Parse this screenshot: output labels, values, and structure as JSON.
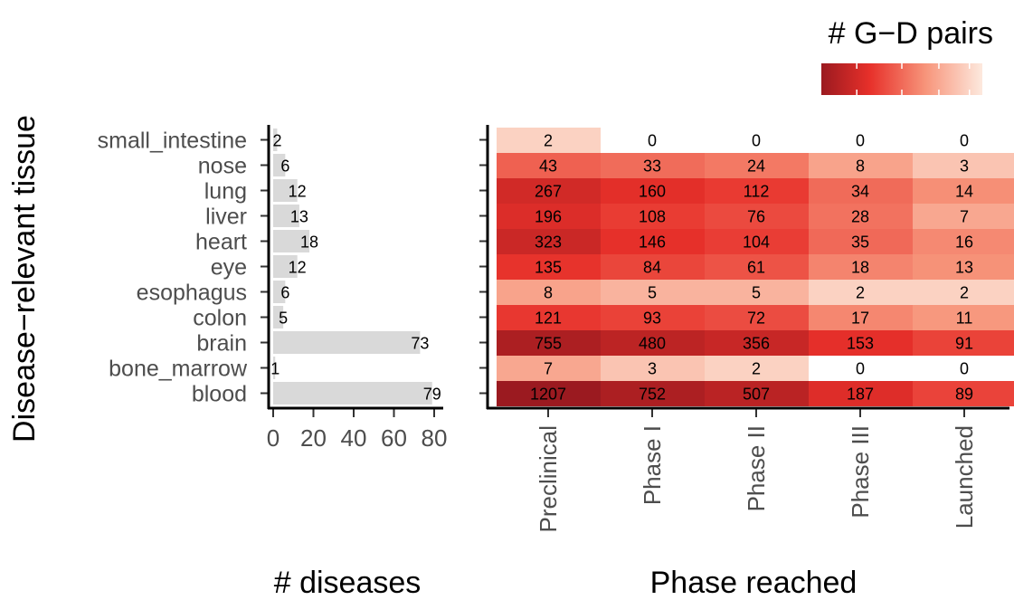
{
  "chart_data": [
    {
      "type": "bar",
      "orientation": "horizontal",
      "categories": [
        "small_intestine",
        "nose",
        "lung",
        "liver",
        "heart",
        "eye",
        "esophagus",
        "colon",
        "brain",
        "bone_marrow",
        "blood"
      ],
      "values": [
        2,
        6,
        12,
        13,
        18,
        12,
        6,
        5,
        73,
        1,
        79
      ],
      "value_labels": [
        "2",
        "6",
        "12",
        "13",
        "18",
        "12",
        "6",
        "5",
        "73",
        "1",
        "79"
      ],
      "xlabel": "# diseases",
      "ylabel": "Disease−relevant tissue",
      "xlim": [
        0,
        82
      ],
      "xticks": [
        "0",
        "20",
        "40",
        "60",
        "80"
      ],
      "bar_color": "#d9d9d9",
      "grid": false
    },
    {
      "type": "heatmap",
      "rows": [
        "small_intestine",
        "nose",
        "lung",
        "liver",
        "heart",
        "eye",
        "esophagus",
        "colon",
        "brain",
        "bone_marrow",
        "blood"
      ],
      "columns": [
        "Preclinical",
        "Phase I",
        "Phase II",
        "Phase III",
        "Launched"
      ],
      "values": [
        [
          2,
          0,
          0,
          0,
          0
        ],
        [
          43,
          33,
          24,
          8,
          3
        ],
        [
          267,
          160,
          112,
          34,
          14
        ],
        [
          196,
          108,
          76,
          28,
          7
        ],
        [
          323,
          146,
          104,
          35,
          16
        ],
        [
          135,
          84,
          61,
          18,
          13
        ],
        [
          8,
          5,
          5,
          2,
          2
        ],
        [
          121,
          93,
          72,
          17,
          11
        ],
        [
          755,
          480,
          356,
          153,
          91
        ],
        [
          7,
          3,
          2,
          0,
          0
        ],
        [
          1207,
          752,
          507,
          187,
          89
        ]
      ],
      "xlabel": "Phase reached",
      "legend_title": "# G−D pairs",
      "legend_placement": "top-right",
      "color_scale": "log",
      "color_low": "#fde9de",
      "color_high": "#9b1a20",
      "zero_color": "#ffffff"
    }
  ]
}
